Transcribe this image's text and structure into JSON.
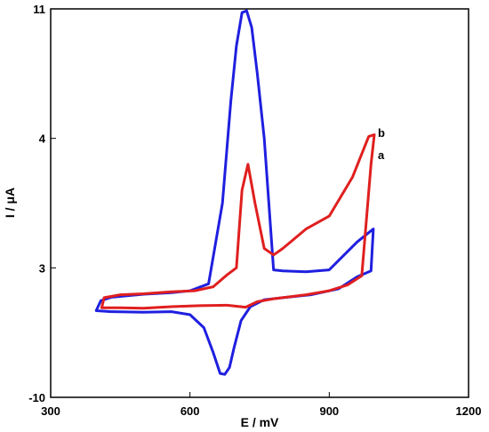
{
  "chart_data": {
    "type": "line",
    "title": "",
    "xlabel": "E / mV",
    "ylabel": "I / μA",
    "xlim": [
      300,
      1200
    ],
    "ylim": [
      -10,
      11
    ],
    "x_ticks": [
      "300",
      "600",
      "900",
      "1200"
    ],
    "y_ticks": [
      "11",
      "4",
      "3",
      "-10"
    ],
    "grid": false,
    "legend": "none",
    "series": [
      {
        "name": "a",
        "color": "#1f1fe0",
        "points": [
          [
            398,
            -1.3
          ],
          [
            430,
            -1.4
          ],
          [
            500,
            -1.45
          ],
          [
            560,
            -1.4
          ],
          [
            600,
            -1.7
          ],
          [
            630,
            -3.0
          ],
          [
            650,
            -5.5
          ],
          [
            665,
            -7.6
          ],
          [
            675,
            -7.7
          ],
          [
            685,
            -7.0
          ],
          [
            695,
            -5.0
          ],
          [
            710,
            -2.3
          ],
          [
            730,
            -0.9
          ],
          [
            760,
            -0.2
          ],
          [
            800,
            0.0
          ],
          [
            860,
            0.3
          ],
          [
            920,
            0.9
          ],
          [
            960,
            2.1
          ],
          [
            990,
            2.7
          ],
          [
            995,
            3.3
          ],
          [
            960,
            3.2
          ],
          [
            900,
            2.8
          ],
          [
            850,
            2.6
          ],
          [
            800,
            2.7
          ],
          [
            780,
            2.8
          ],
          [
            760,
            4.0
          ],
          [
            745,
            7.5
          ],
          [
            733,
            10.0
          ],
          [
            722,
            10.9
          ],
          [
            712,
            10.8
          ],
          [
            700,
            9.0
          ],
          [
            688,
            6.0
          ],
          [
            670,
            3.5
          ],
          [
            640,
            1.4
          ],
          [
            600,
            0.7
          ],
          [
            560,
            0.5
          ],
          [
            500,
            0.35
          ],
          [
            430,
            0.05
          ],
          [
            408,
            -0.3
          ],
          [
            398,
            -1.3
          ]
        ]
      },
      {
        "name": "b",
        "color": "#e01f1f",
        "points": [
          [
            410,
            -1.0
          ],
          [
            450,
            -1.0
          ],
          [
            500,
            -1.05
          ],
          [
            560,
            -0.9
          ],
          [
            620,
            -0.8
          ],
          [
            680,
            -0.75
          ],
          [
            720,
            -0.95
          ],
          [
            745,
            -0.4
          ],
          [
            780,
            -0.1
          ],
          [
            850,
            0.3
          ],
          [
            900,
            0.7
          ],
          [
            940,
            1.3
          ],
          [
            970,
            2.2
          ],
          [
            990,
            3.8
          ],
          [
            997,
            4.2
          ],
          [
            985,
            4.1
          ],
          [
            950,
            3.7
          ],
          [
            900,
            3.4
          ],
          [
            850,
            3.3
          ],
          [
            800,
            3.15
          ],
          [
            780,
            3.1
          ],
          [
            760,
            3.15
          ],
          [
            740,
            3.5
          ],
          [
            725,
            3.8
          ],
          [
            712,
            3.6
          ],
          [
            700,
            3.0
          ],
          [
            680,
            2.3
          ],
          [
            650,
            1.1
          ],
          [
            610,
            0.7
          ],
          [
            560,
            0.6
          ],
          [
            500,
            0.4
          ],
          [
            450,
            0.3
          ],
          [
            415,
            0.0
          ],
          [
            410,
            -1.0
          ]
        ]
      }
    ]
  }
}
